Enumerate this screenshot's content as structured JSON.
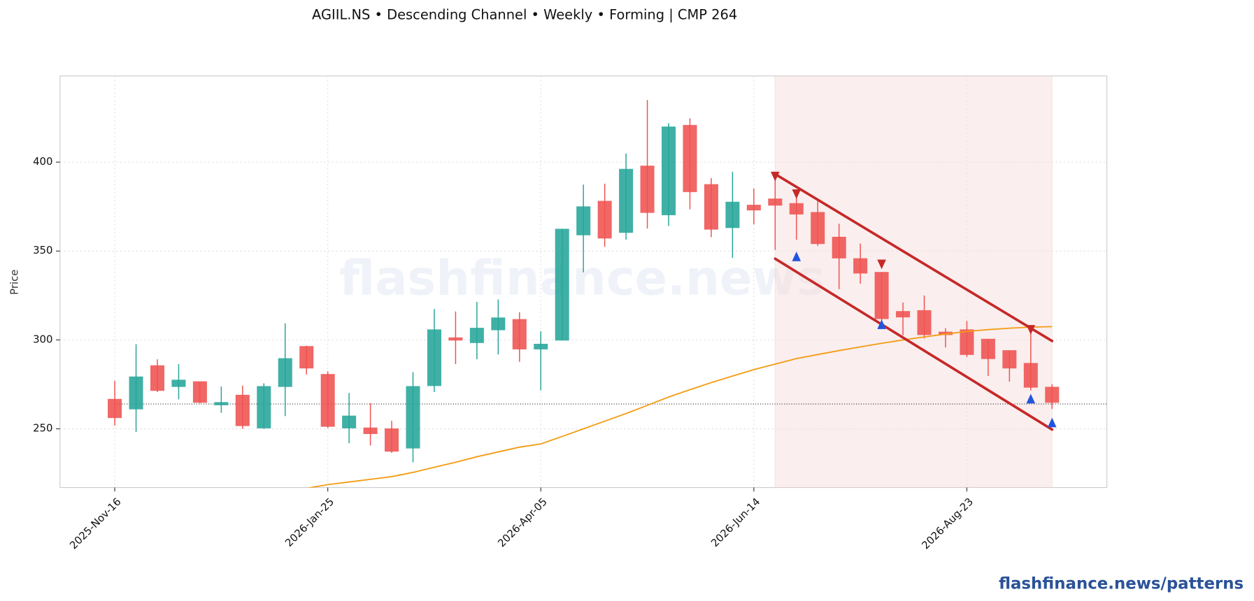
{
  "chart_data": {
    "type": "candlestick",
    "title": "AGIIL.NS  •  Descending Channel  •  Weekly  •  Forming  |  CMP 264",
    "y_label": "Price",
    "watermark": "flashfinance.news",
    "footer": "flashfinance.news/patterns",
    "grid": true,
    "x": [
      "2025-11-16",
      "2025-11-23",
      "2025-11-30",
      "2025-12-07",
      "2025-12-14",
      "2025-12-21",
      "2025-12-28",
      "2026-01-04",
      "2026-01-11",
      "2026-01-18",
      "2026-01-25",
      "2026-02-01",
      "2026-02-08",
      "2026-02-15",
      "2026-02-22",
      "2026-03-01",
      "2026-03-08",
      "2026-03-15",
      "2026-03-22",
      "2026-03-29",
      "2026-04-05",
      "2026-04-12",
      "2026-04-19",
      "2026-04-26",
      "2026-05-03",
      "2026-05-10",
      "2026-05-17",
      "2026-05-24",
      "2026-05-31",
      "2026-06-07",
      "2026-06-14",
      "2026-06-21",
      "2026-06-28",
      "2026-07-05",
      "2026-07-12",
      "2026-07-19",
      "2026-07-26",
      "2026-08-02",
      "2026-08-09",
      "2026-08-16",
      "2026-08-23",
      "2026-08-30",
      "2026-09-06",
      "2026-09-13",
      "2026-09-20"
    ],
    "open": [
      266.6,
      261.2,
      285.5,
      273.8,
      276.5,
      263.5,
      268.9,
      250.5,
      273.8,
      296.3,
      280.6,
      250.5,
      250.5,
      250,
      239.2,
      274.3,
      301.2,
      298.5,
      305.7,
      311.5,
      294.9,
      299.9,
      359.1,
      378,
      360.5,
      397.8,
      370.4,
      420.7,
      387.4,
      363.2,
      375.8,
      379.3,
      376.7,
      371.7,
      357.8,
      345.7,
      338,
      316,
      316.5,
      304.4,
      305.7,
      300.4,
      294,
      286.8,
      273.4
    ],
    "high": [
      277,
      297.6,
      289.1,
      286.4,
      276.5,
      273.8,
      274.3,
      275.6,
      309.3,
      296.7,
      282.4,
      270.2,
      264.4,
      254.5,
      281.9,
      317.4,
      316,
      321.4,
      322.8,
      315.6,
      304.8,
      362.3,
      387.4,
      387.9,
      404.9,
      435,
      422,
      424.7,
      391,
      394.6,
      385.2,
      391,
      381.1,
      378.4,
      365.4,
      354.2,
      338,
      321,
      325,
      306.6,
      310.6,
      300.4,
      294,
      305.7,
      275.1
    ],
    "low": [
      251.8,
      248.2,
      270.7,
      266.6,
      264.4,
      259,
      250,
      250,
      257.2,
      280.6,
      250.5,
      241.9,
      240.6,
      236.5,
      231.2,
      270.7,
      286.4,
      289.1,
      291.8,
      287.7,
      271.6,
      299.9,
      338,
      352.4,
      356.4,
      362.7,
      364.1,
      373.5,
      357.8,
      346.1,
      365,
      350.6,
      356.4,
      352.9,
      328.6,
      331.7,
      309.3,
      302.6,
      300.8,
      295.8,
      290.4,
      279.7,
      276.5,
      271.6,
      261.2
    ],
    "close": [
      256.3,
      279.2,
      271.6,
      277.4,
      264.9,
      264.8,
      251.8,
      273.8,
      289.5,
      284.2,
      251.4,
      257.2,
      247.3,
      237.4,
      273.8,
      305.7,
      299.9,
      306.6,
      312.4,
      294.9,
      297.6,
      362.3,
      374.9,
      357.3,
      396,
      371.7,
      419.8,
      383.4,
      362.3,
      377.5,
      373.1,
      375.8,
      370.8,
      354.2,
      346.1,
      337.6,
      312,
      312.9,
      303,
      303,
      291.8,
      289.5,
      284.2,
      273.4,
      264.9
    ],
    "up_color": "#26a69a",
    "down_color": "#ef5350",
    "ma": {
      "color": "#f39c12",
      "values": [
        null,
        null,
        null,
        null,
        null,
        null,
        null,
        null,
        null,
        216.6,
        218.6,
        220.1,
        221.6,
        223.1,
        225.5,
        228.4,
        231.2,
        234.3,
        237.0,
        239.7,
        241.5,
        245.7,
        250.0,
        254.3,
        258.6,
        263.2,
        267.9,
        272.0,
        276.0,
        279.7,
        283.3,
        286.4,
        289.5,
        291.8,
        294.0,
        296.1,
        298.1,
        300.0,
        301.7,
        303.3,
        304.8,
        305.8,
        306.6,
        307.2,
        307.5
      ]
    },
    "cmp": 264,
    "pattern_window": [
      "2026-06-21",
      "2026-09-20"
    ],
    "channel": {
      "color": "#c62828",
      "upper": {
        "x": [
          "2026-06-21",
          "2026-09-20"
        ],
        "y": [
          393.3,
          299.4
        ]
      },
      "lower": {
        "x": [
          "2026-06-21",
          "2026-09-20"
        ],
        "y": [
          345.7,
          249.6
        ]
      }
    },
    "pivot_highs": {
      "color": "#c62828",
      "x": [
        "2026-06-21",
        "2026-06-28",
        "2026-07-26",
        "2026-09-13"
      ],
      "y": [
        391.9,
        382,
        342.5,
        305.7
      ]
    },
    "pivot_lows": {
      "color": "#2255dd",
      "x": [
        "2026-06-28",
        "2026-07-26",
        "2026-09-13",
        "2026-09-20"
      ],
      "y": [
        347,
        308.8,
        267,
        253.6
      ]
    },
    "xlim": [
      "2025-10-29",
      "2026-10-08"
    ],
    "xticks": [
      {
        "value": "2025-11-16",
        "label": "2025-Nov-16"
      },
      {
        "value": "2026-01-25",
        "label": "2026-Jan-25"
      },
      {
        "value": "2026-04-05",
        "label": "2026-Apr-05"
      },
      {
        "value": "2026-06-14",
        "label": "2026-Jun-14"
      },
      {
        "value": "2026-08-23",
        "label": "2026-Aug-23"
      }
    ],
    "ylim": [
      217,
      448.5
    ],
    "yticks": [
      250,
      300,
      350,
      400
    ]
  }
}
